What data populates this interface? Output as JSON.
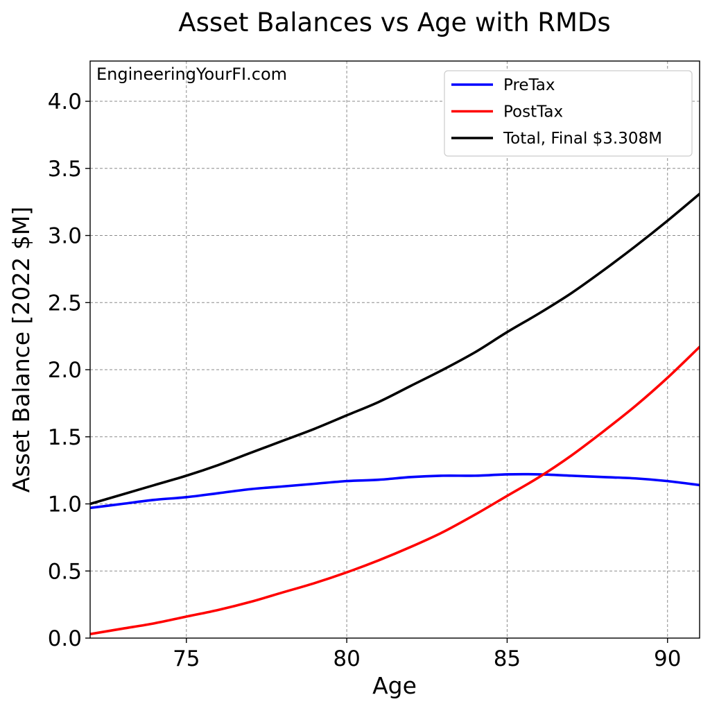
{
  "chart_data": {
    "type": "line",
    "title": "Asset Balances vs Age with RMDs",
    "xlabel": "Age",
    "ylabel": "Asset Balance [2022 $M]",
    "watermark": "EngineeringYourFI.com",
    "xlim": [
      72,
      91
    ],
    "ylim": [
      0,
      4.3
    ],
    "xticks": [
      75,
      80,
      85,
      90
    ],
    "xtick_labels": [
      "75",
      "80",
      "85",
      "90"
    ],
    "yticks": [
      0.0,
      0.5,
      1.0,
      1.5,
      2.0,
      2.5,
      3.0,
      3.5,
      4.0
    ],
    "ytick_labels": [
      "0.0",
      "0.5",
      "1.0",
      "1.5",
      "2.0",
      "2.5",
      "3.0",
      "3.5",
      "4.0"
    ],
    "grid": true,
    "legend_position": "top-right",
    "x": [
      72,
      73,
      74,
      75,
      76,
      77,
      78,
      79,
      80,
      81,
      82,
      83,
      84,
      85,
      86,
      87,
      88,
      89,
      90,
      91
    ],
    "series": [
      {
        "name": "PreTax",
        "color": "#0000ff",
        "values": [
          0.97,
          1.0,
          1.03,
          1.05,
          1.08,
          1.11,
          1.13,
          1.15,
          1.17,
          1.18,
          1.2,
          1.21,
          1.21,
          1.22,
          1.22,
          1.21,
          1.2,
          1.19,
          1.17,
          1.14
        ]
      },
      {
        "name": "PostTax",
        "color": "#ff0000",
        "values": [
          0.03,
          0.07,
          0.11,
          0.16,
          0.21,
          0.27,
          0.34,
          0.41,
          0.49,
          0.58,
          0.68,
          0.79,
          0.92,
          1.06,
          1.2,
          1.36,
          1.54,
          1.73,
          1.94,
          2.17
        ]
      },
      {
        "name": "Total, Final $3.308M",
        "color": "#000000",
        "values": [
          1.0,
          1.07,
          1.14,
          1.21,
          1.29,
          1.38,
          1.47,
          1.56,
          1.66,
          1.76,
          1.88,
          2.0,
          2.13,
          2.28,
          2.42,
          2.57,
          2.74,
          2.92,
          3.11,
          3.31
        ]
      }
    ]
  }
}
